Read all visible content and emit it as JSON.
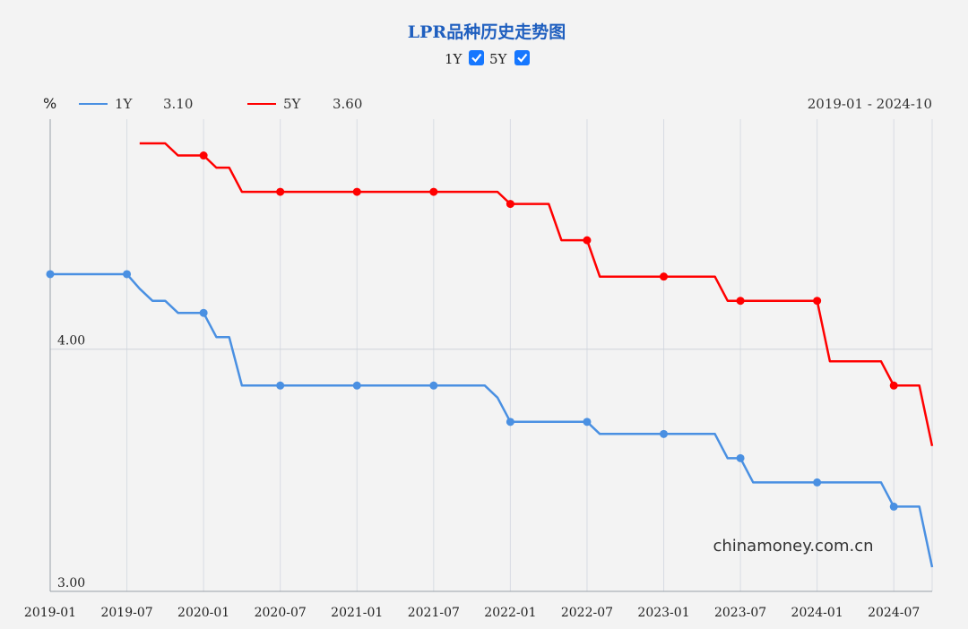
{
  "chart_data": {
    "type": "line",
    "title": "LPR品种历史走势图",
    "toggles": [
      {
        "label": "1Y",
        "checked": true
      },
      {
        "label": "5Y",
        "checked": true
      }
    ],
    "unit": "%",
    "range_label": "2019-01 - 2024-10",
    "watermark": "chinamoney.com.cn",
    "colors": {
      "1Y": "#4a90e2",
      "5Y": "#ff0000"
    },
    "legend": [
      {
        "name": "1Y",
        "value": "3.10"
      },
      {
        "name": "5Y",
        "value": "3.60"
      }
    ],
    "x_ticks": [
      "2019-01",
      "2019-07",
      "2020-01",
      "2020-07",
      "2021-01",
      "2021-07",
      "2022-01",
      "2022-07",
      "2023-01",
      "2023-07",
      "2024-01",
      "2024-07"
    ],
    "y_ticks": [
      {
        "label": "4.00",
        "value": 4.0
      },
      {
        "label": "3.00",
        "value": 3.0
      }
    ],
    "ylim": [
      3.0,
      4.95
    ],
    "xlim": [
      "2019-01",
      "2024-10"
    ],
    "grid": true,
    "legend_position": "top-left",
    "series": [
      {
        "name": "1Y",
        "points": [
          [
            "2019-01",
            4.31
          ],
          [
            "2019-07",
            4.31
          ],
          [
            "2019-08",
            4.25
          ],
          [
            "2019-09",
            4.2
          ],
          [
            "2019-10",
            4.2
          ],
          [
            "2019-11",
            4.15
          ],
          [
            "2019-12",
            4.15
          ],
          [
            "2020-01",
            4.15
          ],
          [
            "2020-02",
            4.05
          ],
          [
            "2020-03",
            4.05
          ],
          [
            "2020-04",
            3.85
          ],
          [
            "2020-07",
            3.85
          ],
          [
            "2021-01",
            3.85
          ],
          [
            "2021-07",
            3.85
          ],
          [
            "2021-11",
            3.85
          ],
          [
            "2021-12",
            3.8
          ],
          [
            "2022-01",
            3.7
          ],
          [
            "2022-07",
            3.7
          ],
          [
            "2022-08",
            3.65
          ],
          [
            "2023-01",
            3.65
          ],
          [
            "2023-05",
            3.65
          ],
          [
            "2023-06",
            3.55
          ],
          [
            "2023-07",
            3.55
          ],
          [
            "2023-08",
            3.45
          ],
          [
            "2024-01",
            3.45
          ],
          [
            "2024-06",
            3.45
          ],
          [
            "2024-07",
            3.35
          ],
          [
            "2024-09",
            3.35
          ],
          [
            "2024-10",
            3.1
          ]
        ]
      },
      {
        "name": "5Y",
        "points": [
          [
            "2019-08",
            4.85
          ],
          [
            "2019-09",
            4.85
          ],
          [
            "2019-10",
            4.85
          ],
          [
            "2019-11",
            4.8
          ],
          [
            "2019-12",
            4.8
          ],
          [
            "2020-01",
            4.8
          ],
          [
            "2020-02",
            4.75
          ],
          [
            "2020-03",
            4.75
          ],
          [
            "2020-04",
            4.65
          ],
          [
            "2020-07",
            4.65
          ],
          [
            "2021-01",
            4.65
          ],
          [
            "2021-07",
            4.65
          ],
          [
            "2021-12",
            4.65
          ],
          [
            "2022-01",
            4.6
          ],
          [
            "2022-04",
            4.6
          ],
          [
            "2022-05",
            4.45
          ],
          [
            "2022-06",
            4.45
          ],
          [
            "2022-07",
            4.45
          ],
          [
            "2022-08",
            4.3
          ],
          [
            "2023-01",
            4.3
          ],
          [
            "2023-05",
            4.3
          ],
          [
            "2023-06",
            4.2
          ],
          [
            "2023-07",
            4.2
          ],
          [
            "2024-01",
            4.2
          ],
          [
            "2024-02",
            3.95
          ],
          [
            "2024-06",
            3.95
          ],
          [
            "2024-07",
            3.85
          ],
          [
            "2024-09",
            3.85
          ],
          [
            "2024-10",
            3.6
          ]
        ]
      }
    ],
    "markers": {
      "1Y": [
        "2019-01",
        "2019-07",
        "2020-01",
        "2020-07",
        "2021-01",
        "2021-07",
        "2022-01",
        "2022-07",
        "2023-01",
        "2023-07",
        "2024-01",
        "2024-07"
      ],
      "5Y": [
        "2020-01",
        "2020-07",
        "2021-01",
        "2021-07",
        "2022-01",
        "2022-07",
        "2023-01",
        "2023-07",
        "2024-01",
        "2024-07"
      ]
    }
  }
}
